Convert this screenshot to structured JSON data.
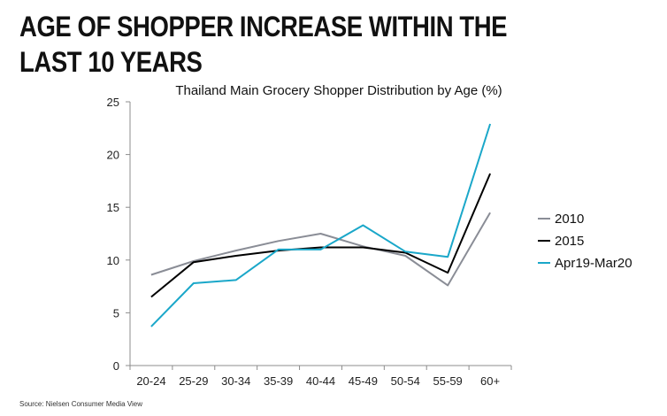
{
  "headline": "AGE OF SHOPPER INCREASE WITHIN THE LAST 10 YEARS",
  "source": "Source:  Nielsen Consumer Media View",
  "chart_data": {
    "type": "line",
    "title": "Thailand Main Grocery Shopper Distribution by Age (%)",
    "xlabel": "",
    "ylabel": "",
    "categories": [
      "20-24",
      "25-29",
      "30-34",
      "35-39",
      "40-44",
      "45-49",
      "50-54",
      "55-59",
      "60+"
    ],
    "ylim": [
      0,
      25
    ],
    "yticks": [
      0,
      5,
      10,
      15,
      20,
      25
    ],
    "legend_position": "right",
    "series": [
      {
        "name": "2010",
        "color": "#8a8d96",
        "values": [
          8.6,
          9.9,
          10.9,
          11.8,
          12.5,
          11.3,
          10.4,
          7.6,
          14.5
        ]
      },
      {
        "name": "2015",
        "color": "#000000",
        "values": [
          6.5,
          9.8,
          10.4,
          10.9,
          11.2,
          11.2,
          10.7,
          8.8,
          18.2
        ]
      },
      {
        "name": "Apr19-Mar20",
        "color": "#1aa7c9",
        "values": [
          3.7,
          7.8,
          8.1,
          11.0,
          11.0,
          13.3,
          10.8,
          10.3,
          22.9
        ]
      }
    ]
  }
}
